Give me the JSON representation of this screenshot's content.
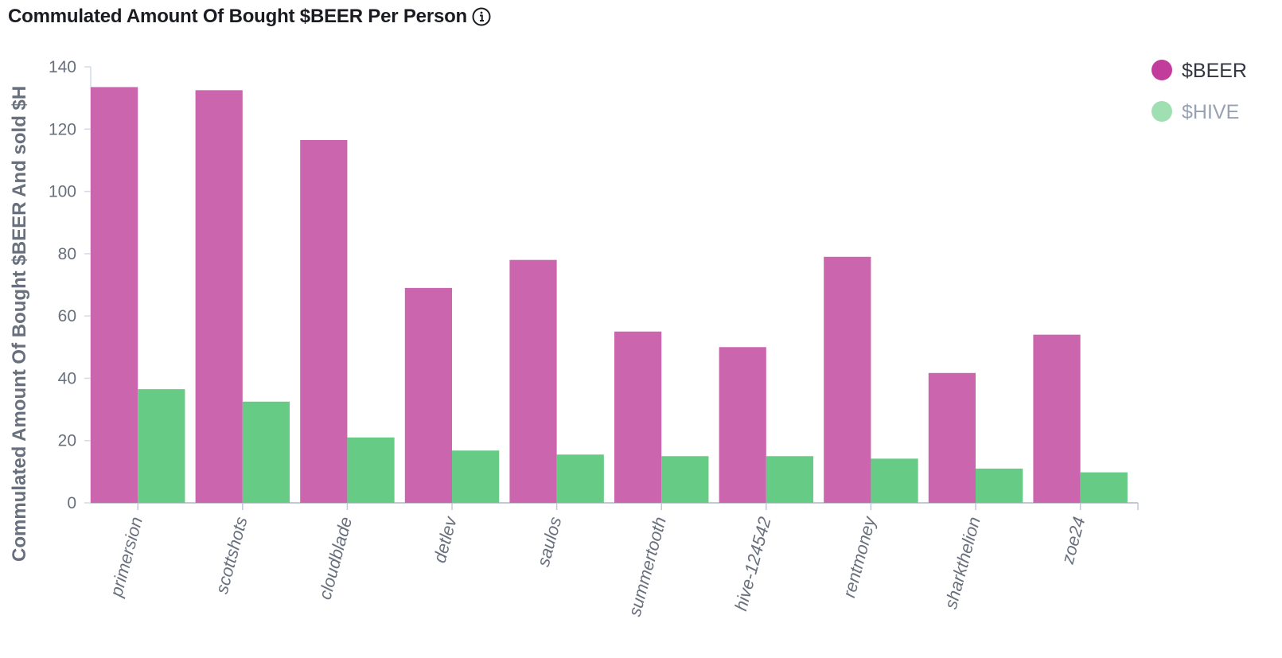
{
  "header": {
    "title": "Commulated Amount Of Bought $BEER Per Person"
  },
  "chart_data": {
    "type": "bar",
    "title": "Commulated Amount Of Bought $BEER Per Person",
    "ylabel": "Commulated Amount Of Bought $BEER And sold $HIVE",
    "ylabel_visible": "Commulated Amount Of Bought $BEER And sold $H",
    "xlabel": "",
    "ylim": [
      0,
      140
    ],
    "yticks": [
      0,
      20,
      40,
      60,
      80,
      100,
      120,
      140
    ],
    "categories": [
      "primersion",
      "scottshots",
      "cloudblade",
      "detlev",
      "saulos",
      "summertooth",
      "hive-124542",
      "rentmoney",
      "sharkthelion",
      "zoe24"
    ],
    "series": [
      {
        "name": "$BEER",
        "color": "#cb66ae",
        "legend_color": "#c13c9b",
        "legend_text_color": "#343741",
        "values": [
          133.5,
          132.5,
          116.5,
          69,
          78,
          55,
          50,
          79,
          41.7,
          54
        ]
      },
      {
        "name": "$HIVE",
        "color": "#66cb84",
        "legend_color": "#9fdfb1",
        "legend_text_color": "#98a2b3",
        "values": [
          36.5,
          32.5,
          21,
          16.8,
          15.5,
          15,
          15,
          14.2,
          11,
          9.8
        ]
      }
    ],
    "legend_position": "top-right",
    "grid": false
  }
}
